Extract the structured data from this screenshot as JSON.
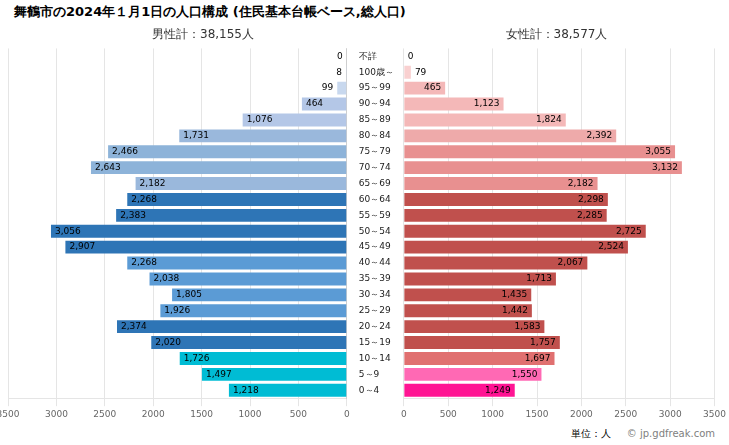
{
  "chart_data": {
    "type": "bar",
    "orientation": "horizontal",
    "title": "舞鶴市の2024年１月1日の人口構成 (住民基本台帳ベース,総人口)",
    "categories": [
      "不詳",
      "100歳～",
      "95～99",
      "90～94",
      "85～89",
      "80～84",
      "75～79",
      "70～74",
      "65～69",
      "60～64",
      "55～59",
      "50～54",
      "45～49",
      "40～44",
      "35～39",
      "30～34",
      "25～29",
      "20～24",
      "15～19",
      "10～14",
      "5～9",
      "0～4"
    ],
    "series": [
      {
        "name": "男性計：38,155人",
        "colors": [
          "#c8d8ee",
          "#c8d8ee",
          "#c8d8ee",
          "#b4c7e7",
          "#b4c7e7",
          "#9ab8dc",
          "#8db3d9",
          "#8db3d9",
          "#9ab8dc",
          "#2e75b6",
          "#2e75b6",
          "#2e75b6",
          "#2e75b6",
          "#5b9bd5",
          "#5b9bd5",
          "#5b9bd5",
          "#5b9bd5",
          "#2e75b6",
          "#2e75b6",
          "#00bcd4",
          "#00bcd4",
          "#00bcd4"
        ],
        "values": [
          0,
          8,
          99,
          464,
          1076,
          1731,
          2466,
          2643,
          2182,
          2268,
          2383,
          3056,
          2907,
          2268,
          2038,
          1805,
          1926,
          2374,
          2020,
          1726,
          1497,
          1218
        ],
        "value_labels": [
          "0",
          "8",
          "99",
          "464",
          "1,076",
          "1,731",
          "2,466",
          "2,643",
          "2,182",
          "2,268",
          "2,383",
          "3,056",
          "2,907",
          "2,268",
          "2,038",
          "1,805",
          "1,926",
          "2,374",
          "2,020",
          "1,726",
          "1,497",
          "1,218"
        ]
      },
      {
        "name": "女性計：38,577人",
        "colors": [
          "#fce4e4",
          "#f9d0d0",
          "#f4b8b8",
          "#f4b8b8",
          "#f4b8b8",
          "#eeaaaa",
          "#e89090",
          "#e89090",
          "#e89090",
          "#c0504d",
          "#c0504d",
          "#c0504d",
          "#c0504d",
          "#c0504d",
          "#c0504d",
          "#c0504d",
          "#c0504d",
          "#c0504d",
          "#c0504d",
          "#e07070",
          "#ff69b4",
          "#ff1493"
        ],
        "values": [
          0,
          79,
          465,
          1123,
          1824,
          2392,
          3055,
          3132,
          2182,
          2298,
          2285,
          2725,
          2524,
          2067,
          1713,
          1435,
          1442,
          1583,
          1757,
          1697,
          1550,
          1249
        ],
        "value_labels": [
          "0",
          "79",
          "465",
          "1,123",
          "1,824",
          "2,392",
          "3,055",
          "3,132",
          "2,182",
          "2,298",
          "2,285",
          "2,725",
          "2,524",
          "2,067",
          "1,713",
          "1,435",
          "1,442",
          "1,583",
          "1,757",
          "1,697",
          "1,550",
          "1,249"
        ]
      }
    ],
    "xlim": [
      0,
      3500
    ],
    "xticks": [
      0,
      500,
      1000,
      1500,
      2000,
      2500,
      3000,
      3500
    ],
    "grid": true,
    "data_labels": true,
    "annotations": [
      "単位：人",
      "© jp.gdfreak.com"
    ]
  }
}
